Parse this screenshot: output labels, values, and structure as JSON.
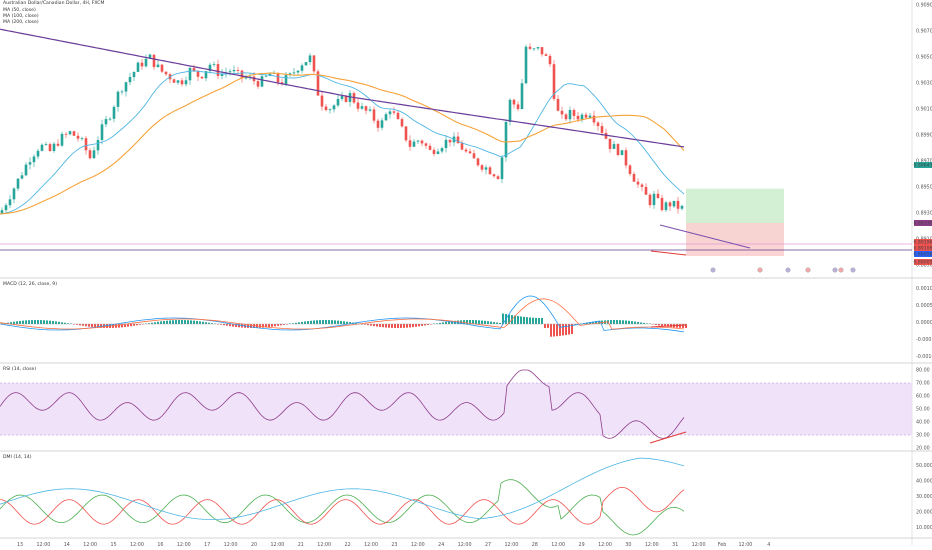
{
  "header": {
    "title": "Australian Dollar/Canadian Dollar, 4H, FXCM",
    "indicators": [
      "MA (50, close)",
      "MA (100, close)",
      "MA (200, close)"
    ]
  },
  "price_axis": {
    "ticks": [
      "0.90900",
      "0.90700",
      "0.90500",
      "0.90300",
      "0.90100",
      "0.89900",
      "0.89700",
      "0.89500",
      "0.89300",
      "0.89100",
      "0.88900"
    ],
    "badges": [
      {
        "text": "0.89645",
        "color": "#26a69a"
      },
      {
        "text": "0.89330",
        "color": "#8e3d8b"
      },
      {
        "text": "0.89196",
        "color": "#ef5350"
      },
      {
        "text": "0.89108",
        "color": "#ef5350"
      },
      {
        "text": "0.89056",
        "color": "#2962ff"
      },
      {
        "text": "0.89005",
        "color": "#ef5350"
      }
    ]
  },
  "time_axis": {
    "labels": [
      "13",
      "12:00",
      "14",
      "12:00",
      "15",
      "12:00",
      "16",
      "12:00",
      "17",
      "12:00",
      "20",
      "12:00",
      "21",
      "12:00",
      "22",
      "12:00",
      "23",
      "12:00",
      "24",
      "12:00",
      "27",
      "12:00",
      "28",
      "12:00",
      "29",
      "12:00",
      "30",
      "12:00",
      "31",
      "12:00",
      "Feb",
      "12:00",
      "4"
    ]
  },
  "macd": {
    "label": "MACD (12, 26, close, 9)",
    "ticks": [
      "0.00100",
      "0.00050",
      "0.00000",
      "-0.00050",
      "-0.00100"
    ]
  },
  "rsi": {
    "label": "RSI (14, close)",
    "ticks": [
      "80.00",
      "70.00",
      "60.00",
      "50.00",
      "40.00",
      "30.00",
      "20.00"
    ]
  },
  "dmi": {
    "label": "DMI (14, 14)",
    "ticks": [
      "50.0000",
      "40.0000",
      "30.0000",
      "20.0000",
      "10.0000"
    ]
  },
  "colors": {
    "up": "#26a69a",
    "down": "#ef5350",
    "ma50": "#4fb6e3",
    "ma100": "#f5a33a",
    "ma200": "#6a3d9a",
    "rsi_line": "#8e3d8b",
    "rsi_band": "#e9d5f7",
    "dmi_plus": "#4caf50",
    "dmi_minus": "#ef5350",
    "adx": "#4fb6e3",
    "target_zone": "#cfeecf",
    "stop_zone": "#fbd0d0"
  },
  "chart_data": {
    "type": "candlestick",
    "symbol": "Australian Dollar/Canadian Dollar",
    "timeframe": "4H",
    "source": "FXCM",
    "ylim": [
      0.8885,
      0.9095
    ],
    "series": [
      {
        "name": "MA (50, close)"
      },
      {
        "name": "MA (100, close)"
      },
      {
        "name": "MA (200, close)"
      }
    ],
    "price_samples": [
      [
        0,
        0.893
      ],
      [
        10,
        0.8945
      ],
      [
        20,
        0.896
      ],
      [
        30,
        0.8975
      ],
      [
        40,
        0.8985
      ],
      [
        50,
        0.898
      ],
      [
        60,
        0.899
      ],
      [
        70,
        0.8995
      ],
      [
        80,
        0.899
      ],
      [
        90,
        0.8975
      ],
      [
        100,
        0.8995
      ],
      [
        110,
        0.901
      ],
      [
        120,
        0.903
      ],
      [
        130,
        0.904
      ],
      [
        140,
        0.905
      ],
      [
        150,
        0.9055
      ],
      [
        160,
        0.9045
      ],
      [
        170,
        0.904
      ],
      [
        180,
        0.9035
      ],
      [
        190,
        0.9045
      ],
      [
        200,
        0.904
      ],
      [
        210,
        0.905
      ],
      [
        220,
        0.9042
      ],
      [
        230,
        0.9045
      ],
      [
        240,
        0.904
      ],
      [
        250,
        0.9038
      ],
      [
        260,
        0.9035
      ],
      [
        270,
        0.9042
      ],
      [
        280,
        0.9035
      ],
      [
        290,
        0.904
      ],
      [
        300,
        0.905
      ],
      [
        310,
        0.9055
      ],
      [
        320,
        0.902
      ],
      [
        330,
        0.9015
      ],
      [
        340,
        0.902
      ],
      [
        350,
        0.9025
      ],
      [
        360,
        0.9015
      ],
      [
        370,
        0.901
      ],
      [
        380,
        0.9
      ],
      [
        390,
        0.9015
      ],
      [
        400,
        0.9
      ],
      [
        410,
        0.8985
      ],
      [
        420,
        0.899
      ],
      [
        430,
        0.898
      ],
      [
        440,
        0.8985
      ],
      [
        450,
        0.899
      ],
      [
        460,
        0.8985
      ],
      [
        470,
        0.8975
      ],
      [
        480,
        0.897
      ],
      [
        490,
        0.8965
      ],
      [
        500,
        0.896
      ],
      [
        505,
        0.9
      ],
      [
        510,
        0.902
      ],
      [
        520,
        0.9015
      ],
      [
        525,
        0.9065
      ],
      [
        530,
        0.906
      ],
      [
        540,
        0.9062
      ],
      [
        550,
        0.905
      ],
      [
        555,
        0.902
      ],
      [
        560,
        0.9005
      ],
      [
        570,
        0.901
      ],
      [
        580,
        0.9008
      ],
      [
        590,
        0.9012
      ],
      [
        600,
        0.9
      ],
      [
        610,
        0.8985
      ],
      [
        620,
        0.898
      ],
      [
        630,
        0.8965
      ],
      [
        640,
        0.895
      ],
      [
        650,
        0.894
      ],
      [
        655,
        0.8945
      ],
      [
        660,
        0.8935
      ],
      [
        670,
        0.8938
      ],
      [
        680,
        0.8935
      ],
      [
        686,
        0.8933
      ]
    ],
    "rsi": {
      "ylim": [
        20,
        80
      ],
      "band": [
        30,
        70
      ]
    },
    "macd": {
      "ylim": [
        -0.001,
        0.001
      ]
    },
    "dmi": {
      "ylim": [
        5,
        55
      ]
    }
  }
}
